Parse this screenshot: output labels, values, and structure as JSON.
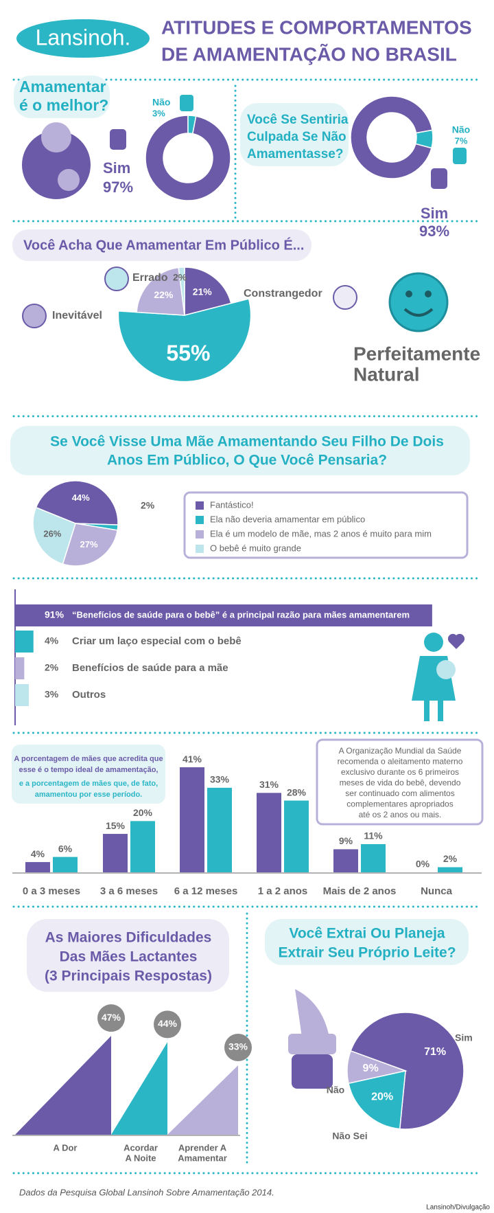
{
  "header": {
    "logo": "Lansinoh.",
    "title": [
      "ATITUDES E COMPORTAMENTOS",
      "DE AMAMENTAÇÃO NO BRASIL"
    ]
  },
  "chart_data": [
    {
      "type": "donut",
      "title": [
        "Amamentar",
        "é o melhor?"
      ],
      "categories": [
        "Sim",
        "Não"
      ],
      "values": [
        97,
        3
      ],
      "value_labels": [
        "97%",
        "3%"
      ],
      "colors": [
        "#6a5aa8",
        "#2bb6c6"
      ]
    },
    {
      "type": "donut",
      "title": [
        "Você Se Sentiria",
        "Culpada Se Não",
        "Amamentasse?"
      ],
      "categories": [
        "Sim",
        "Não"
      ],
      "values": [
        93,
        7
      ],
      "value_labels": [
        "93%",
        "7%"
      ],
      "colors": [
        "#6a5aa8",
        "#2bb6c6"
      ]
    },
    {
      "type": "pie",
      "title": "Você Acha Que Amamentar Em Público É...",
      "categories": [
        "Constrangedor",
        [
          "Perfeitamente",
          "Natural"
        ],
        "Inevitável",
        "Errado"
      ],
      "values": [
        21,
        55,
        22,
        2
      ],
      "value_labels": [
        "21%",
        "55%",
        "22%",
        "2%"
      ],
      "colors": [
        "#6a5aa8",
        "#2bb6c6",
        "#b9b0da",
        "#bde6ec"
      ]
    },
    {
      "type": "pie",
      "title": [
        "Se Você Visse Uma Mãe Amamentando Seu Filho De Dois",
        "Anos Em Público, O Que Você Pensaria?"
      ],
      "categories": [
        "Fantástico!",
        "Ela não deveria amamentar em público",
        "Ela é um modelo de mãe, mas 2 anos é muito para mim",
        "O bebê é muito grande"
      ],
      "values": [
        44,
        2,
        27,
        26
      ],
      "value_labels": [
        "44%",
        "2%",
        "27%",
        "26%"
      ],
      "colors": [
        "#6a5aa8",
        "#2bb6c6",
        "#b9b0da",
        "#bde6ec"
      ],
      "legend": true
    },
    {
      "type": "hbar",
      "categories": [
        "“Benefícios de saúde para o bebê” é a principal razão para mães amamentarem",
        "Criar um laço especial com o bebê",
        "Benefícios de saúde para a mãe",
        "Outros"
      ],
      "values": [
        91,
        4,
        2,
        3
      ],
      "value_labels": [
        "91%",
        "4%",
        "2%",
        "3%"
      ],
      "colors": [
        "#6a5aa8",
        "#2bb6c6",
        "#b9b0da",
        "#bde6ec"
      ]
    },
    {
      "type": "bar",
      "categories": [
        "0 a 3 meses",
        "3 a 6 meses",
        "6 a 12 meses",
        "1 a 2 anos",
        "Mais de 2 anos",
        "Nunca"
      ],
      "series": [
        {
          "name": [
            "A porcentagem de mães que acredita que",
            "esse é o tempo ideal de amamentação,"
          ],
          "color": "#6a5aa8",
          "values": [
            4,
            15,
            41,
            31,
            9,
            0
          ],
          "value_labels": [
            "4%",
            "15%",
            "41%",
            "31%",
            "9%",
            "0%"
          ]
        },
        {
          "name": [
            "e a porcentagem de mães que, de fato,",
            "amamentou por esse período."
          ],
          "color": "#2bb6c6",
          "values": [
            6,
            20,
            33,
            28,
            11,
            2
          ],
          "value_labels": [
            "6%",
            "20%",
            "33%",
            "28%",
            "11%",
            "2%"
          ]
        }
      ],
      "annotation": [
        "A Organização Mundial da Saúde",
        "recomenda o aleitamento materno",
        "exclusivo durante os 6 primeiros",
        "meses de vida do bebê, devendo",
        "ser continuado com alimentos",
        "complementares apropriados",
        "até os 2 anos ou mais."
      ]
    },
    {
      "type": "triangle",
      "title": [
        "As Maiores Dificuldades",
        "Das Mães Lactantes",
        "(3 Principais Respostas)"
      ],
      "categories": [
        [
          "A Dor"
        ],
        [
          "Acordar",
          "A Noite"
        ],
        [
          "Aprender A",
          "Amamentar"
        ]
      ],
      "values": [
        47,
        44,
        33
      ],
      "value_labels": [
        "47%",
        "44%",
        "33%"
      ],
      "colors": [
        "#6a5aa8",
        "#2bb6c6",
        "#b9b0da"
      ]
    },
    {
      "type": "pie",
      "title": [
        "Você Extrai Ou Planeja",
        "Extrair Seu Próprio Leite?"
      ],
      "categories": [
        "Sim",
        "Não Sei",
        "Não"
      ],
      "values": [
        71,
        20,
        9
      ],
      "value_labels": [
        "71%",
        "20%",
        "9%"
      ],
      "colors": [
        "#6a5aa8",
        "#2bb6c6",
        "#b9b0da"
      ]
    }
  ],
  "footer": {
    "source": "Dados da Pesquisa Global Lansinoh Sobre Amamentação 2014.",
    "credit": "Lansinoh/Divulgação"
  }
}
